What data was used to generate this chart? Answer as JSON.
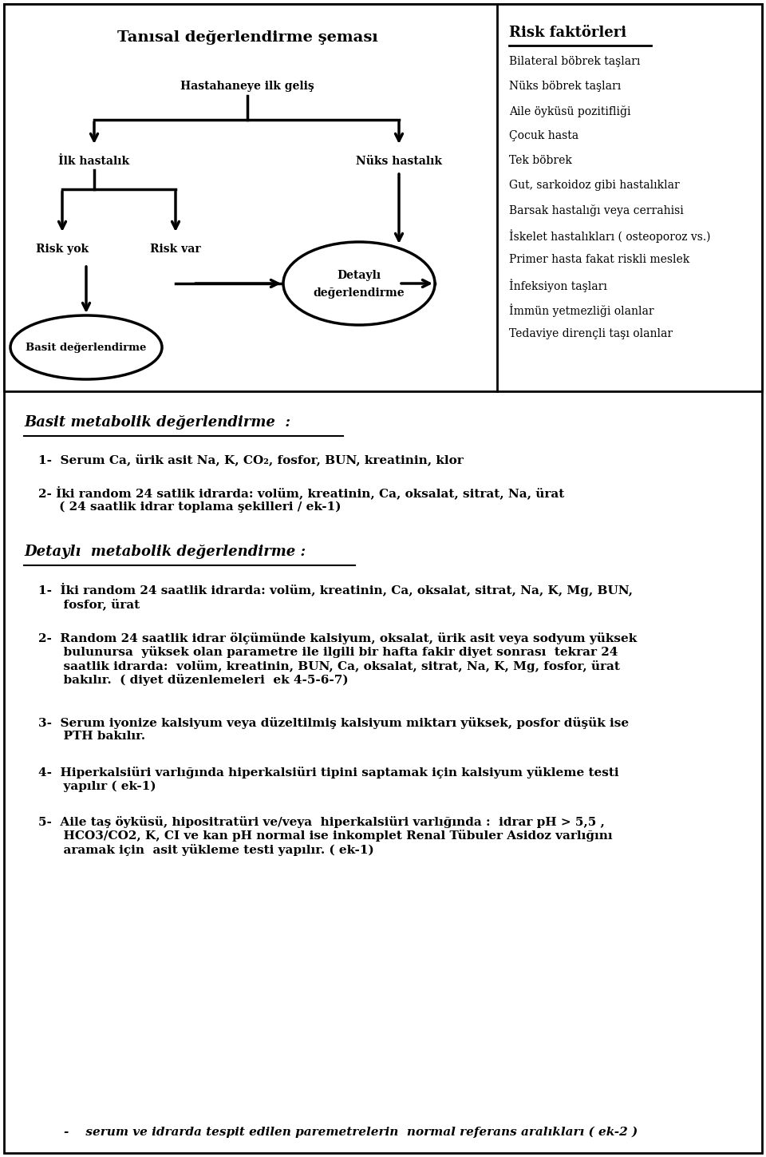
{
  "bg_color": "#ffffff",
  "flowchart_title": "Tanısal değerlendirme şeması",
  "flowchart_node1": "Hastahaneye ilk geliş",
  "flowchart_node2": "İlk hastalık",
  "flowchart_node3": "Nüks hastalık",
  "flowchart_node4_line1": "Detaylı",
  "flowchart_node4_line2": "değerlendirme",
  "flowchart_node5": "Risk yok",
  "flowchart_node6": "Risk var",
  "flowchart_node7": "Basit değerlendirme",
  "risk_title": "Risk faktörleri",
  "risk_items": [
    "Bilateral böbrek taşları",
    "Nüks böbrek taşları",
    "Aile öyküsü pozitifliği",
    "Çocuk hasta",
    "Tek böbrek",
    "Gut, sarkoidoz gibi hastalıklar",
    "Barsak hastalığı veya cerrahisi",
    "İskelet hastalıkları ( osteoporoz vs.)",
    "Primer hasta fakat riskli meslek",
    "İnfeksiyon taşları",
    "İmmün yetmezliği olanlar",
    "Tedaviye dirençli taşı olanlar"
  ],
  "basit_title": "Basit metabolik değerlendirme  :",
  "basit_items": [
    "1-  Serum Ca, ürik asit Na, K, CO₂, fosfor, BUN, kreatinin, klor",
    "2- İki random 24 satlik idrarda: volüm, kreatinin, Ca, oksalat, sitrat, Na, ürat\n     ( 24 saatlik idrar toplama şekilleri / ek-1)"
  ],
  "detayli_title": "Detaylı  metabolik değerlendirme :",
  "detayli_items": [
    "1-  İki random 24 saatlik idrarda: volüm, kreatinin, Ca, oksalat, sitrat, Na, K, Mg, BUN,\n      fosfor, ürat",
    "2-  Random 24 saatlik idrar ölçümünde kalsiyum, oksalat, ürik asit veya sodyum yüksek\n      bulunursa  yüksek olan parametre ile ilgili bir hafta fakir diyet sonrası  tekrar 24\n      saatlik idrarda:  volüm, kreatinin, BUN, Ca, oksalat, sitrat, Na, K, Mg, fosfor, ürat\n      bakılır.  ( diyet düzenlemeleri  ek 4-5-6-7)",
    "3-  Serum iyonize kalsiyum veya düzeltilmiş kalsiyum miktarı yüksek, posfor düşük ise\n      PTH bakılır.",
    "4-  Hiperkalsiüri varlığında hiperkalsiüri tipini saptamak için kalsiyum yükleme testi\n      yapılır ( ek-1)",
    "5-  Aile taş öyküsü, hipositratüri ve/veya  hiperkalsiüri varlığında :  idrar pH > 5,5 ,\n      HCO3/CO2, K, CI ve kan pH normal ise inkomplet Renal Tübuler Asidoz varlığını\n      aramak için  asit yükleme testi yapılır. ( ek-1)"
  ],
  "footer_text": "-    serum ve idrarda tespit edilen paremetrelerin  normal referans aralıkları ( ek-2 )"
}
